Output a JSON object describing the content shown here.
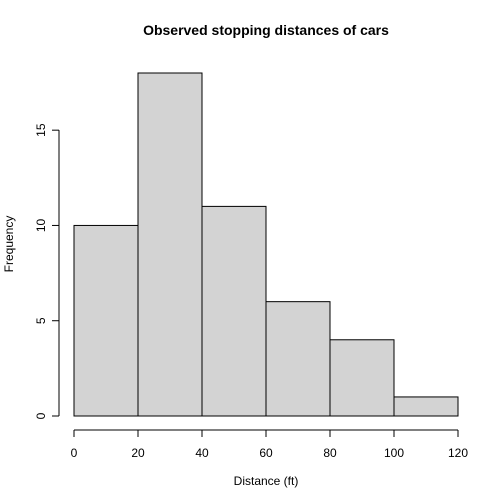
{
  "chart_data": {
    "type": "bar",
    "title": "Observed stopping distances of cars",
    "xlabel": "Distance (ft)",
    "ylabel": "Frequency",
    "bins": [
      {
        "from": 0,
        "to": 20,
        "count": 10
      },
      {
        "from": 20,
        "to": 40,
        "count": 18
      },
      {
        "from": 40,
        "to": 60,
        "count": 11
      },
      {
        "from": 60,
        "to": 80,
        "count": 6
      },
      {
        "from": 80,
        "to": 100,
        "count": 4
      },
      {
        "from": 100,
        "to": 120,
        "count": 1
      }
    ],
    "xlim": [
      0,
      120
    ],
    "ylim": [
      0,
      18
    ],
    "x_ticks": [
      "0",
      "20",
      "40",
      "60",
      "80",
      "100",
      "120"
    ],
    "y_ticks": [
      "0",
      "5",
      "10",
      "15"
    ],
    "grid": false,
    "colors": {
      "bar_fill": "#d3d3d3",
      "bar_stroke": "#000000",
      "axis": "#000000"
    }
  }
}
